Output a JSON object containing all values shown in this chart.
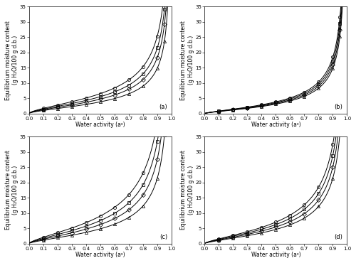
{
  "subplot_labels": [
    "(a)",
    "(b)",
    "(c)",
    "(d)"
  ],
  "xlabel": "Water activity (aᵡ)",
  "ylabel": "Equilibrium moisture content\n(g H₂O/100 g d.b.)",
  "ylim": [
    0,
    35
  ],
  "xlim": [
    0.0,
    1.0
  ],
  "yticks": [
    0,
    5,
    10,
    15,
    20,
    25,
    30,
    35
  ],
  "xticks": [
    0.0,
    0.1,
    0.2,
    0.3,
    0.4,
    0.5,
    0.6,
    0.7,
    0.8,
    0.9,
    1.0
  ],
  "markers": [
    "o",
    "s",
    "D",
    "^"
  ],
  "markersize": 3.0,
  "linewidth": 0.7,
  "subplot_params": {
    "a": {
      "oswin": [
        {
          "A": 6.5,
          "B": 0.62
        },
        {
          "A": 5.5,
          "B": 0.62
        },
        {
          "A": 4.7,
          "B": 0.62
        },
        {
          "A": 3.8,
          "B": 0.62
        }
      ],
      "exp_aw": [
        0.1,
        0.2,
        0.3,
        0.4,
        0.5,
        0.6,
        0.7,
        0.8,
        0.9,
        0.95
      ]
    },
    "b": {
      "oswin": [
        {
          "A": 3.8,
          "B": 0.72
        },
        {
          "A": 3.55,
          "B": 0.72
        },
        {
          "A": 3.3,
          "B": 0.72
        },
        {
          "A": 3.05,
          "B": 0.72
        }
      ],
      "exp_aw": [
        0.1,
        0.2,
        0.3,
        0.4,
        0.5,
        0.6,
        0.7,
        0.8,
        0.9,
        0.95
      ]
    },
    "c": {
      "oswin": [
        {
          "A": 9.0,
          "B": 0.68
        },
        {
          "A": 7.5,
          "B": 0.68
        },
        {
          "A": 6.2,
          "B": 0.68
        },
        {
          "A": 4.8,
          "B": 0.68
        }
      ],
      "exp_aw": [
        0.1,
        0.2,
        0.3,
        0.4,
        0.5,
        0.6,
        0.7,
        0.8,
        0.9,
        0.95
      ]
    },
    "d": {
      "oswin": [
        {
          "A": 7.0,
          "B": 0.7
        },
        {
          "A": 6.2,
          "B": 0.7
        },
        {
          "A": 5.4,
          "B": 0.7
        },
        {
          "A": 4.6,
          "B": 0.7
        }
      ],
      "exp_aw": [
        0.1,
        0.2,
        0.3,
        0.4,
        0.5,
        0.6,
        0.7,
        0.8,
        0.9,
        0.95
      ]
    }
  },
  "figure_bg": "#ffffff",
  "axes_bg": "#ffffff",
  "text_color": "#000000",
  "font_size_label": 5.5,
  "font_size_tick": 5.0,
  "font_size_tag": 6.0
}
